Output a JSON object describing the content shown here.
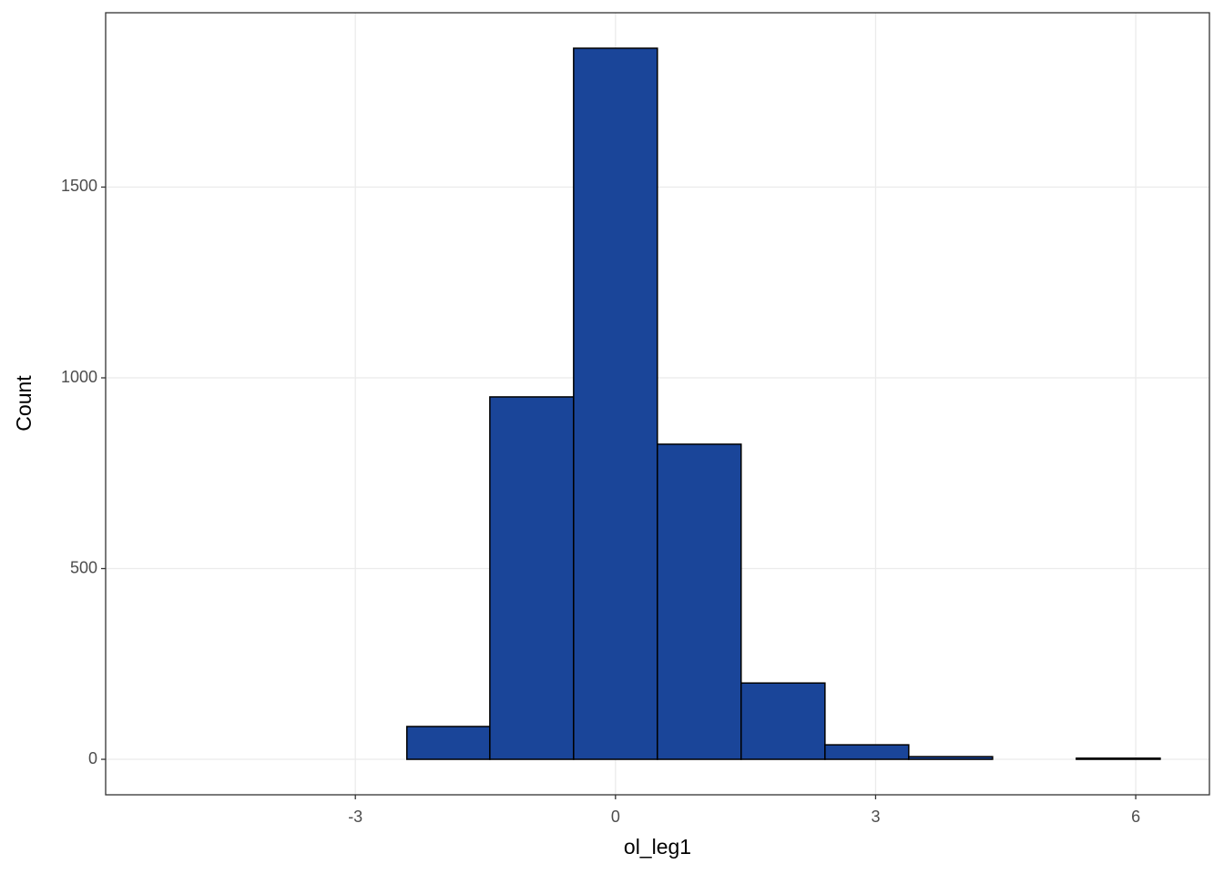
{
  "chart_data": {
    "type": "histogram",
    "x_label": "ol_leg1",
    "y_label": "Count",
    "bins": [
      -5.305,
      -4.339,
      -3.372,
      -2.406,
      -1.449,
      -0.483,
      0.483,
      1.449,
      2.416,
      3.382,
      4.349,
      5.315,
      6.282
    ],
    "values": [
      0,
      0,
      0,
      86,
      950,
      1864,
      826,
      200,
      38,
      7,
      0,
      3
    ],
    "color": "#1a4599",
    "edgecolor": "#000000",
    "xlim": [
      -5.88,
      6.85
    ],
    "ylim": [
      -93,
      1957
    ],
    "xticks": [
      -3,
      0,
      3,
      6
    ],
    "yticks": [
      0,
      500,
      1000,
      1500
    ],
    "grid": true
  }
}
